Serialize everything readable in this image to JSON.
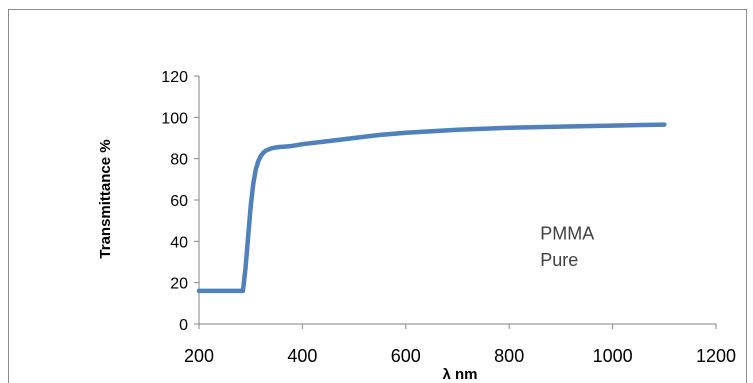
{
  "chart_data": {
    "type": "line",
    "title": "",
    "xlabel": "λ nm",
    "ylabel": "Transmittance %",
    "xlim": [
      200,
      1200
    ],
    "ylim": [
      0,
      120
    ],
    "xticks": [
      200,
      400,
      600,
      800,
      1000,
      1200
    ],
    "yticks": [
      0,
      20,
      40,
      60,
      80,
      100,
      120
    ],
    "grid": false,
    "annotations": [
      {
        "text": "PMMA",
        "x": 860,
        "y": 41
      },
      {
        "text": "Pure",
        "x": 860,
        "y": 28
      }
    ],
    "series": [
      {
        "color": "#4f81bd",
        "x": [
          200,
          285,
          290,
          295,
          300,
          305,
          310,
          315,
          320,
          325,
          330,
          340,
          350,
          375,
          400,
          450,
          500,
          550,
          600,
          700,
          800,
          900,
          1000,
          1100
        ],
        "y": [
          16,
          16,
          27,
          42,
          57,
          68,
          75,
          79,
          81.5,
          83,
          84,
          85,
          85.5,
          86,
          87,
          88.5,
          90,
          91.5,
          92.5,
          94,
          95,
          95.5,
          96,
          96.5
        ]
      }
    ]
  }
}
